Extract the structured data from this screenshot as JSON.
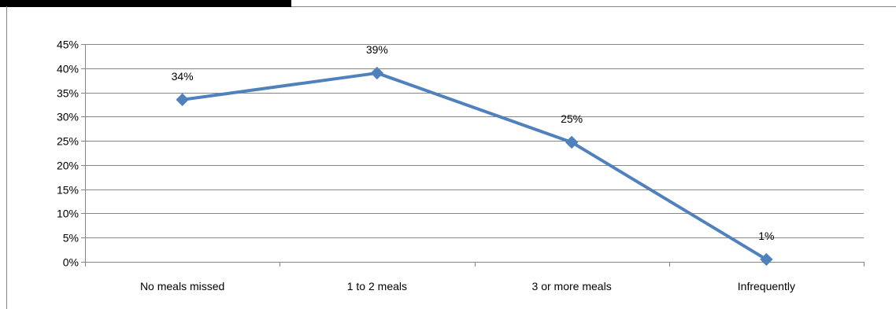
{
  "chart_data": {
    "type": "line",
    "categories": [
      "No meals missed",
      "1 to 2 meals",
      "3 or more meals",
      "Infrequently"
    ],
    "series": [
      {
        "values": [
          33.5,
          39,
          24.7,
          0.5
        ],
        "data_labels": [
          "34%",
          "39%",
          "25%",
          "1%"
        ]
      }
    ],
    "yticks": [
      "0%",
      "5%",
      "10%",
      "15%",
      "20%",
      "25%",
      "30%",
      "35%",
      "40%",
      "45%"
    ],
    "ylim": [
      0,
      45
    ],
    "grid": true,
    "legend": "none",
    "series_color": "#4F81BD",
    "grid_color": "#868686"
  }
}
